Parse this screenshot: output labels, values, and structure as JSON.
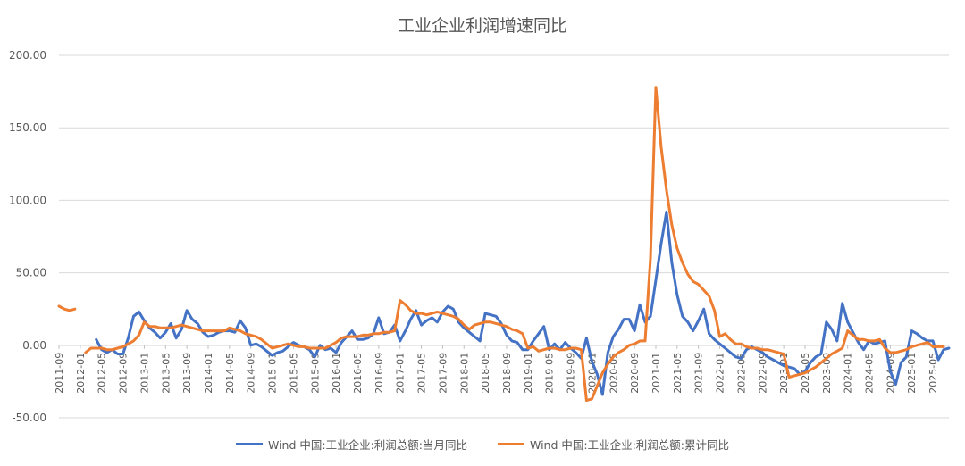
{
  "chart_data": {
    "type": "line",
    "title": "工业企业利润增速同比",
    "ylim": [
      -50,
      200
    ],
    "yticks": [
      "200.00",
      "150.00",
      "100.00",
      "50.00",
      "0.00",
      "-50.00"
    ],
    "ytick_values": [
      200,
      150,
      100,
      50,
      0,
      -50
    ],
    "x_start": "2011-09",
    "x_labels": [
      "2011-09",
      "2012-01",
      "2012-05",
      "2012-09",
      "2013-01",
      "2013-05",
      "2013-09",
      "2014-01",
      "2014-05",
      "2014-09",
      "2015-01",
      "2015-05",
      "2015-09",
      "2016-01",
      "2016-05",
      "2016-09",
      "2017-01",
      "2017-05",
      "2017-09",
      "2018-01",
      "2018-05",
      "2018-09",
      "2019-01",
      "2019-05",
      "2019-09",
      "2020-01",
      "2020-05",
      "2020-09",
      "2021-01",
      "2021-05",
      "2021-09",
      "2022-01",
      "2022-05",
      "2022-09",
      "2023-01",
      "2023-05",
      "2023-09",
      "2024-01",
      "2024-05",
      "2024-09",
      "2025-01",
      "2025-05"
    ],
    "grid": true,
    "legend_position": "bottom",
    "series": [
      {
        "name": "Wind 中国:工业企业:利润总额:当月同比",
        "color": "#4472C4",
        "values": [
          null,
          null,
          null,
          null,
          null,
          null,
          null,
          4,
          -3,
          -5,
          -3,
          -6,
          -6,
          5,
          20,
          23,
          17,
          12,
          9,
          5,
          9,
          15,
          5,
          11,
          24,
          18,
          15,
          9,
          6,
          7,
          9,
          10,
          10,
          9,
          17,
          12,
          0,
          1,
          -1,
          -4,
          -7,
          -5,
          -4,
          -1,
          2,
          0,
          -1,
          -3,
          -8,
          0,
          -3,
          -2,
          -5,
          2,
          6,
          10,
          4,
          4,
          5,
          8,
          19,
          8,
          9,
          14,
          3,
          10,
          18,
          24,
          14,
          17,
          19,
          16,
          23,
          27,
          25,
          16,
          12,
          9,
          6,
          3,
          22,
          21,
          20,
          15,
          7,
          3,
          2,
          -3,
          -3,
          3,
          8,
          13,
          -3,
          1,
          -3,
          2,
          -2,
          -5,
          -9,
          5,
          -11,
          -20,
          -34,
          -5,
          6,
          11,
          18,
          18,
          10,
          28,
          16,
          20,
          45,
          70,
          92,
          57,
          35,
          20,
          16,
          10,
          17,
          25,
          8,
          4,
          1,
          -2,
          -5,
          -8,
          -9,
          -3,
          -1,
          -3,
          -5,
          -8,
          -10,
          -12,
          -14,
          -15,
          -16,
          -20,
          -18,
          -12,
          -8,
          -6,
          16,
          11,
          3,
          29,
          16,
          9,
          2,
          -3,
          3,
          1,
          2,
          3,
          -18,
          -27,
          -12,
          -8,
          10,
          8,
          5,
          3,
          3,
          -10,
          -3,
          -2
        ]
      },
      {
        "name": "Wind 中国:工业企业:利润总额:累计同比",
        "color": "#ED7D31",
        "values": [
          27,
          25,
          24,
          25,
          null,
          -5,
          -2,
          -2,
          -2,
          -3,
          -3,
          -2,
          -1,
          1,
          3,
          7,
          16,
          13,
          13,
          12,
          12,
          12,
          13,
          14,
          13,
          12,
          11,
          10,
          10,
          10,
          10,
          10,
          12,
          11,
          10,
          8,
          7,
          6,
          4,
          1,
          -2,
          -1,
          0,
          1,
          0,
          -1,
          -1,
          -2,
          -2,
          -2,
          -2,
          0,
          2,
          5,
          6,
          6,
          6,
          7,
          7,
          8,
          8,
          9,
          9,
          10,
          31,
          28,
          24,
          22,
          22,
          21,
          22,
          23,
          22,
          21,
          20,
          18,
          14,
          11,
          14,
          15,
          16,
          16,
          15,
          14,
          13,
          11,
          10,
          8,
          -2,
          -1,
          -4,
          -3,
          -2,
          -2,
          -3,
          -3,
          -2,
          -2,
          -3,
          -38,
          -37,
          -28,
          -19,
          -13,
          -8,
          -5,
          -3,
          0,
          1,
          3,
          3,
          60,
          178,
          137,
          107,
          83,
          67,
          57,
          49,
          44,
          42,
          38,
          34,
          24,
          6,
          8,
          4,
          1,
          1,
          -1,
          -2,
          -2,
          -3,
          -3,
          -4,
          -5,
          -6,
          -22,
          -21,
          -20,
          -19,
          -17,
          -15,
          -12,
          -9,
          -6,
          -4,
          -2,
          10,
          7,
          4,
          4,
          3,
          3,
          4,
          -2,
          -5,
          -5,
          -4,
          -3,
          -1,
          0,
          1,
          2,
          -1,
          -1,
          -1
        ]
      }
    ]
  }
}
